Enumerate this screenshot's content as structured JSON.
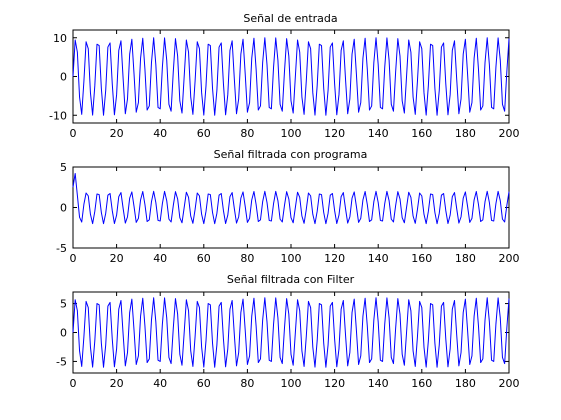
{
  "figure": {
    "background": "#ffffff"
  },
  "chart_data": [
    {
      "type": "line",
      "title": "Señal de entrada",
      "xlabel": "",
      "ylabel": "",
      "xlim": [
        0,
        200
      ],
      "ylim": [
        -12,
        12
      ],
      "xticks": [
        "0",
        "20",
        "40",
        "60",
        "80",
        "100",
        "120",
        "140",
        "160",
        "180",
        "200"
      ],
      "yticks": [
        "-10",
        "0",
        "10"
      ],
      "grid": false,
      "series": [
        {
          "color": "#0000ff",
          "signal": {
            "amplitude": 10,
            "offset": 0,
            "period": 5.1,
            "phase": 0,
            "x_start": 0,
            "x_end": 200,
            "x_step": 1
          }
        }
      ]
    },
    {
      "type": "line",
      "title": "Señal filtrada con programa",
      "xlabel": "",
      "ylabel": "",
      "xlim": [
        0,
        200
      ],
      "ylim": [
        -5,
        5
      ],
      "xticks": [
        "0",
        "20",
        "40",
        "60",
        "80",
        "100",
        "120",
        "140",
        "160",
        "180",
        "200"
      ],
      "yticks": [
        "-5",
        "0",
        "5"
      ],
      "grid": false,
      "series": [
        {
          "color": "#0000ff",
          "signal": {
            "amplitude": 2,
            "offset": 0,
            "period": 5.1,
            "phase": 0,
            "x_start": 0,
            "x_end": 200,
            "x_step": 1
          },
          "initial_points": [
            [
              0,
              2.5
            ],
            [
              1,
              4.2
            ],
            [
              2,
              1.5
            ],
            [
              3,
              -1.2
            ],
            [
              4,
              -1.8
            ],
            [
              5,
              0.4
            ]
          ]
        }
      ]
    },
    {
      "type": "line",
      "title": "Señal filtrada con Filter",
      "xlabel": "",
      "ylabel": "",
      "xlim": [
        0,
        200
      ],
      "ylim": [
        -7,
        7
      ],
      "xticks": [
        "0",
        "20",
        "40",
        "60",
        "80",
        "100",
        "120",
        "140",
        "160",
        "180",
        "200"
      ],
      "yticks": [
        "-5",
        "0",
        "5"
      ],
      "grid": false,
      "series": [
        {
          "color": "#0000ff",
          "signal": {
            "amplitude": 6,
            "offset": 0,
            "period": 5.1,
            "phase": 0,
            "x_start": 0,
            "x_end": 200,
            "x_step": 1
          }
        }
      ]
    }
  ]
}
